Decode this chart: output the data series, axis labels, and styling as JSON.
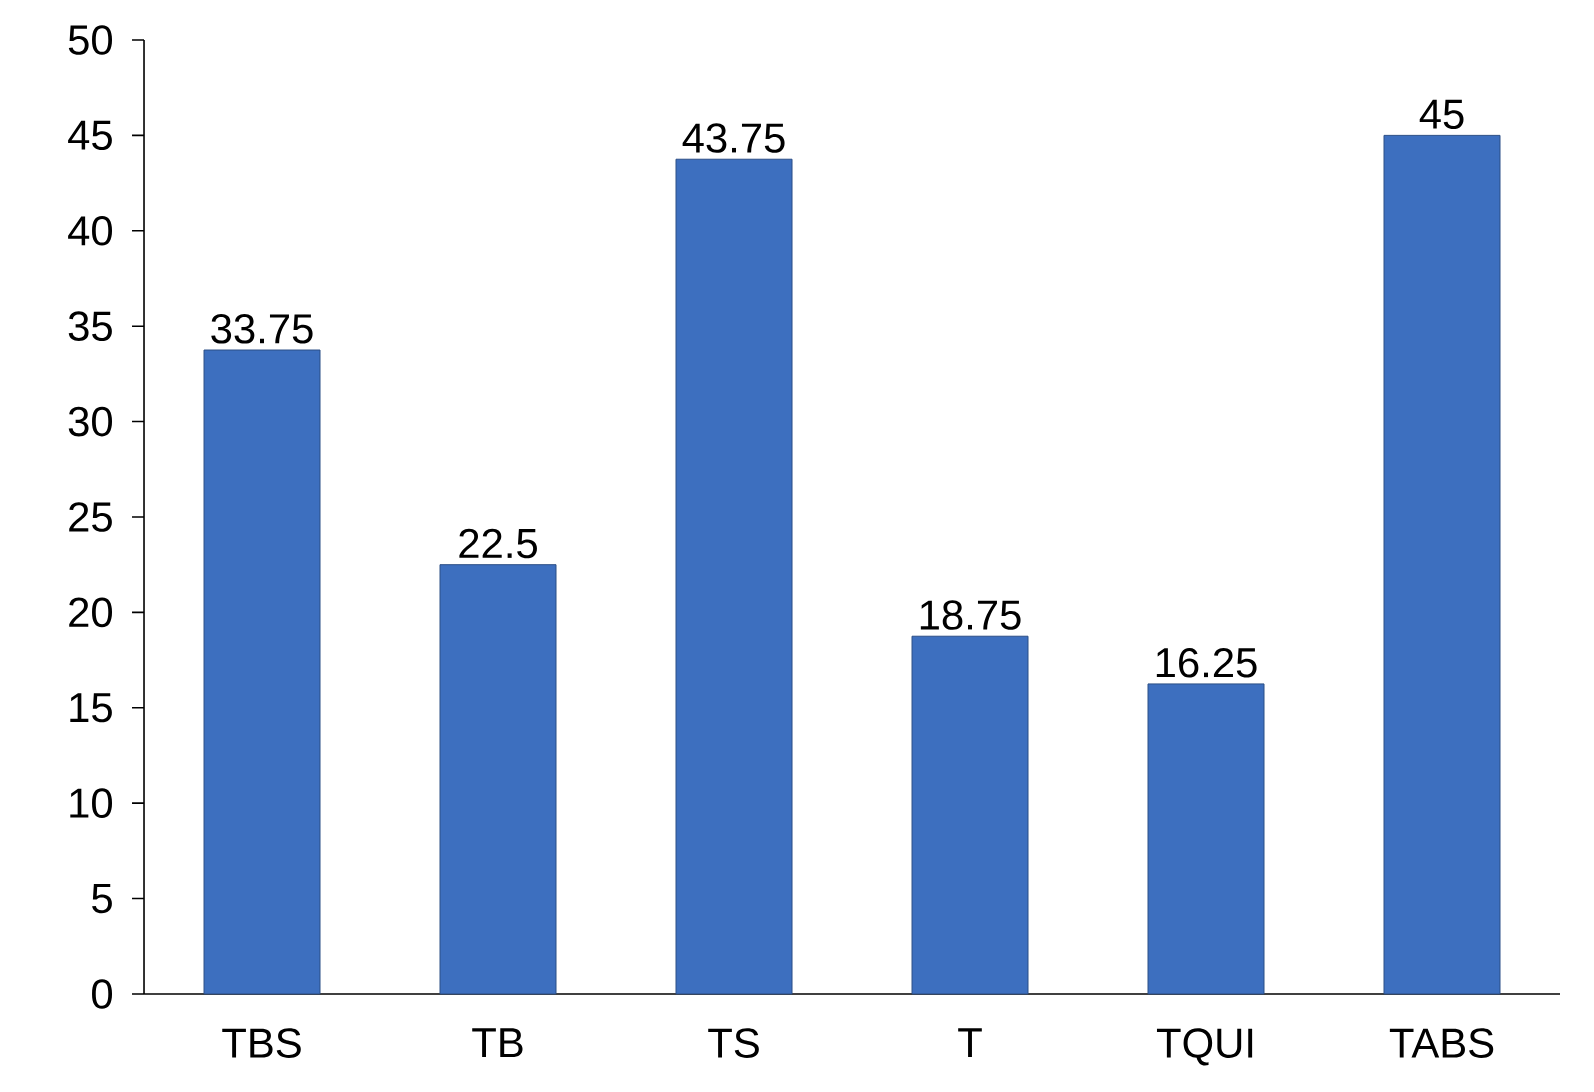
{
  "chart_data": {
    "type": "bar",
    "categories": [
      "TBS",
      "TB",
      "TS",
      "T",
      "TQUI",
      "TABS"
    ],
    "values": [
      33.75,
      22.5,
      43.75,
      18.75,
      16.25,
      45
    ],
    "color": "#3d6fbf",
    "ylim": [
      0,
      50
    ],
    "yticks": [
      0,
      5,
      10,
      15,
      20,
      25,
      30,
      35,
      40,
      45,
      50
    ],
    "data_labels": true,
    "grid": false
  }
}
